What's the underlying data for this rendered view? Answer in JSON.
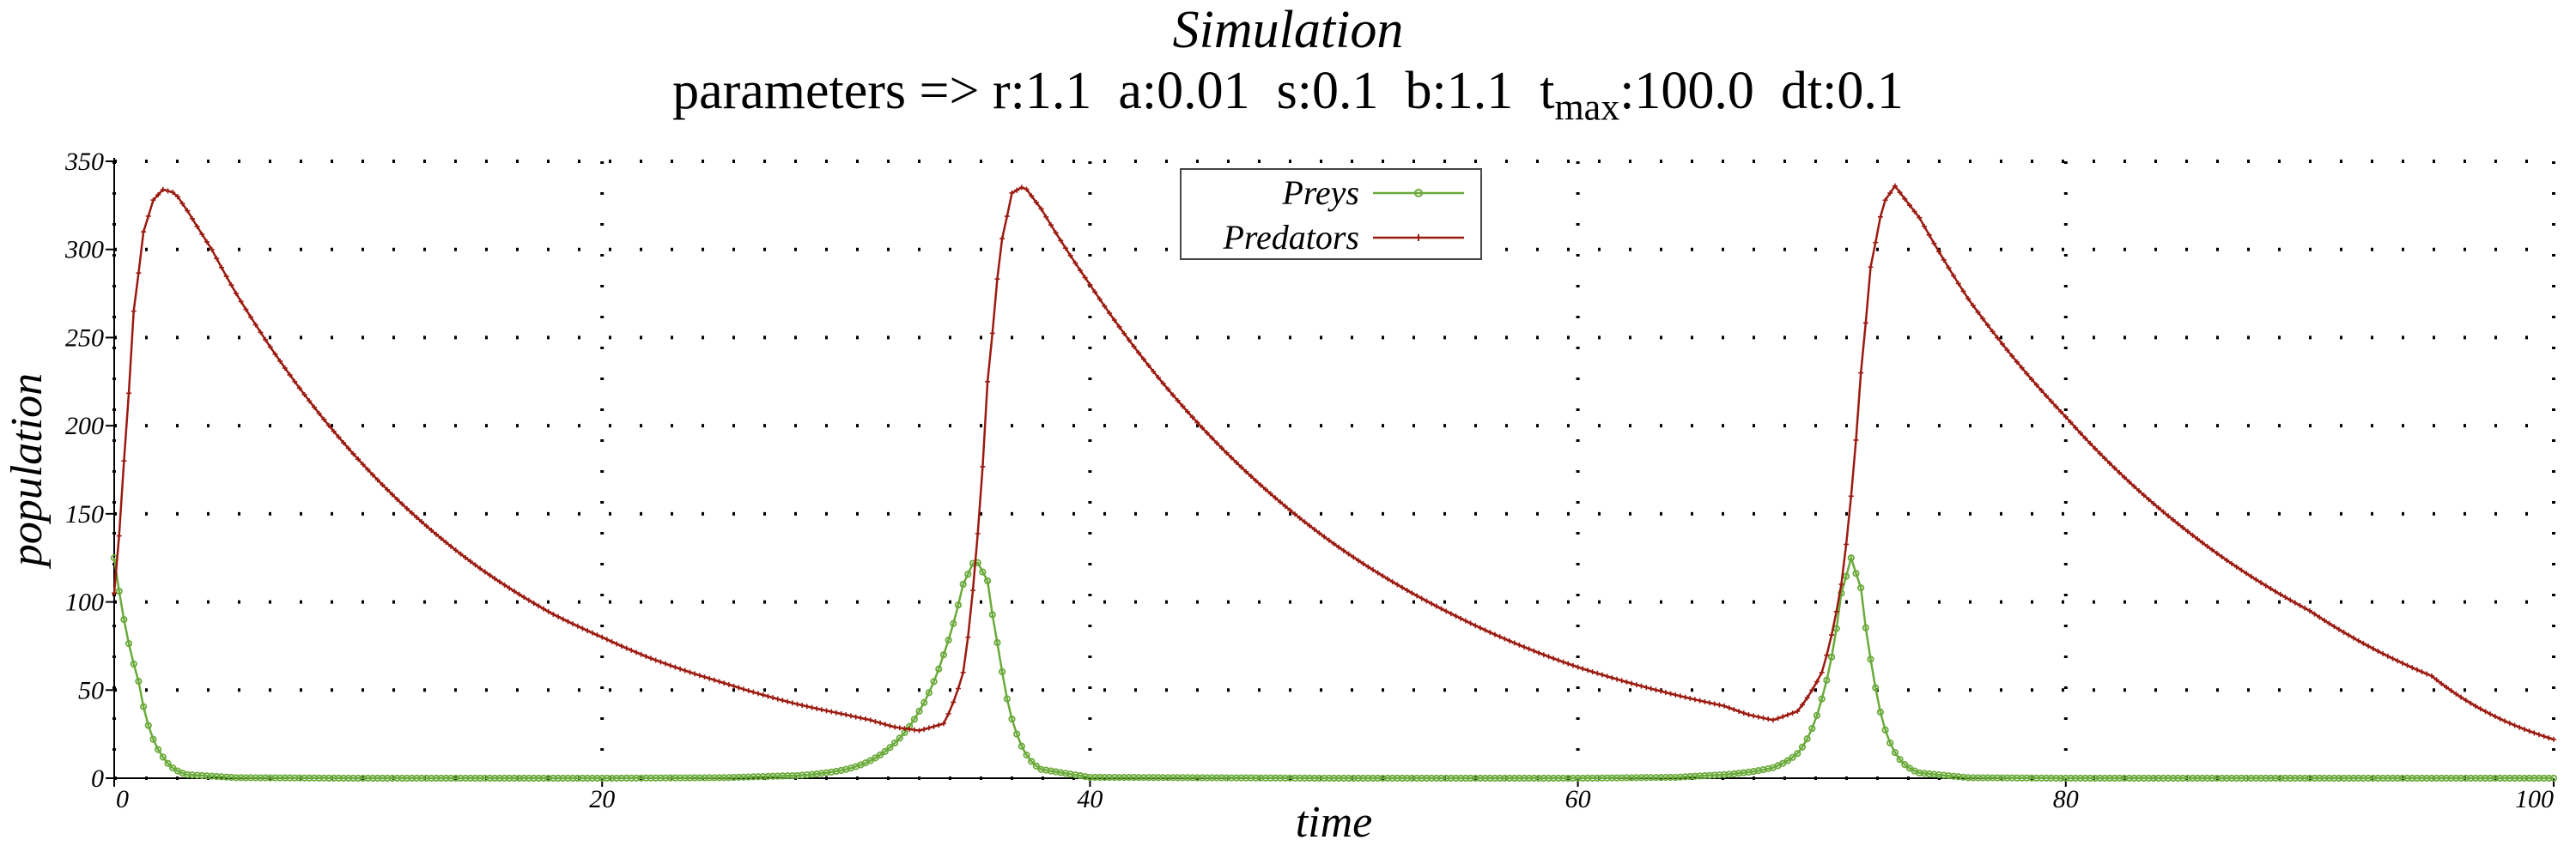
{
  "title": "Simulation",
  "parameters": [
    {
      "text": "parameters => ",
      "sub": ""
    },
    {
      "text": "r:1.1",
      "sub": ""
    },
    {
      "text": "a:0.01",
      "sub": ""
    },
    {
      "text": "s:0.1",
      "sub": ""
    },
    {
      "text": "b:1.1",
      "sub": ""
    },
    {
      "text": "t",
      "sub": "max",
      "after": ":100.0"
    },
    {
      "text": "dt:0.1",
      "sub": ""
    }
  ],
  "chart_data": {
    "type": "line",
    "title": "Simulation",
    "xlabel": "time",
    "ylabel": "population",
    "xlim": [
      0,
      100
    ],
    "ylim": [
      0,
      350
    ],
    "x_ticks": [
      0,
      20,
      40,
      60,
      80,
      100
    ],
    "y_ticks": [
      0,
      50,
      100,
      150,
      200,
      250,
      300,
      350
    ],
    "grid": true,
    "legend_position": "top-center",
    "params": {
      "r": 1.1,
      "a": 0.01,
      "s": 0.1,
      "b": 1.1,
      "tmax": 100.0,
      "dt": 0.1
    },
    "series": [
      {
        "name": "Preys",
        "color": "#6aaa3a",
        "marker": "circle",
        "x": [
          0,
          1,
          2,
          3,
          5,
          10,
          20,
          25,
          28,
          30,
          31,
          32,
          33,
          34,
          34.8,
          35.3,
          35.8,
          36.3,
          37,
          38,
          40,
          50,
          60,
          64,
          66,
          68,
          69,
          70,
          70.8,
          71.2,
          71.6,
          72.1,
          72.8,
          74,
          76,
          80,
          90,
          100
        ],
        "values": [
          125,
          55,
          12,
          2,
          0.3,
          0,
          0,
          0.3,
          1.5,
          5,
          10,
          20,
          38,
          70,
          110,
          125,
          112,
          70,
          25,
          5,
          0.5,
          0,
          0,
          0.5,
          2,
          6,
          14,
          45,
          105,
          125,
          108,
          60,
          20,
          3,
          0.3,
          0,
          0,
          0
        ]
      },
      {
        "name": "Predators",
        "color": "#9b1a10",
        "marker": "plus",
        "x": [
          0,
          0.4,
          0.8,
          1.2,
          1.6,
          2,
          2.5,
          3,
          4,
          5,
          6,
          8,
          10,
          12,
          15,
          18,
          20,
          22,
          25,
          28,
          30,
          31,
          32,
          33,
          34,
          34.8,
          35.3,
          35.8,
          36.3,
          36.8,
          37.3,
          38,
          40,
          45,
          50,
          55,
          60,
          65,
          66,
          67,
          68,
          69,
          70,
          70.8,
          71.2,
          71.6,
          72,
          72.5,
          73,
          74,
          76,
          80,
          85,
          90,
          95,
          100
        ],
        "values": [
          105,
          180,
          265,
          310,
          328,
          334,
          332,
          322,
          300,
          275,
          253,
          214,
          181,
          153,
          119,
          93,
          80,
          68,
          54,
          42,
          36,
          33,
          29,
          27,
          31,
          60,
          123,
          225,
          300,
          332,
          336,
          323,
          280,
          193,
          133,
          92,
          63,
          44,
          41,
          36,
          33,
          38,
          60,
          110,
          160,
          230,
          290,
          326,
          336,
          318,
          272,
          205,
          140,
          95,
          58,
          22
        ]
      }
    ]
  }
}
